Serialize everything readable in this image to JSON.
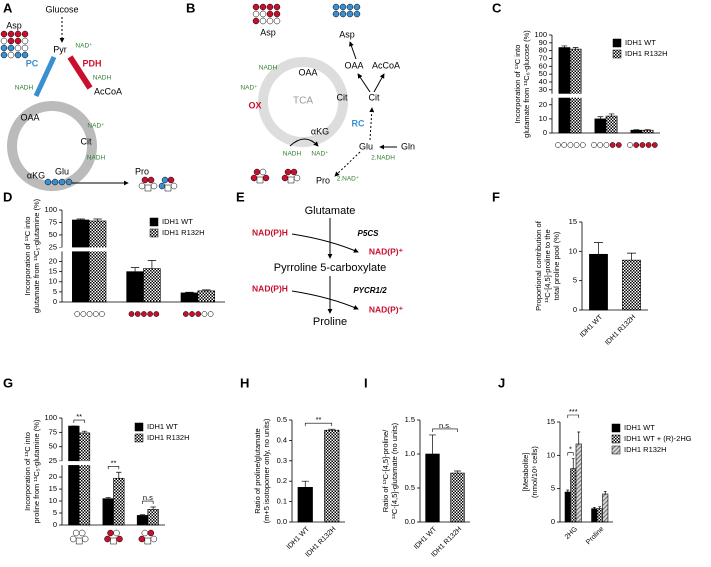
{
  "panel_a": {
    "letter": "A",
    "labels": [
      "Asp",
      "Glucose",
      "Pyr",
      "NAD⁺",
      "PC",
      "PDH",
      "NADH",
      "NADH",
      "OAA",
      "AcCoA",
      "Cit",
      "NAD⁺",
      "NADH",
      "αKG",
      "Glu",
      "Pro"
    ]
  },
  "panel_b": {
    "letter": "B",
    "labels": [
      "Asp",
      "NADH",
      "NAD⁺",
      "OX",
      "OAA",
      "TCA",
      "Cit",
      "αKG",
      "Asp",
      "OAA",
      "AcCoA",
      "Cit",
      "RC",
      "Glu",
      "Gln",
      "NADH",
      "NAD⁺",
      "Pro",
      "2.NADH",
      "2.NAD⁺"
    ]
  },
  "panel_e": {
    "letter": "E",
    "labels": [
      "Glutamate",
      "NAD(P)H",
      "P5CS",
      "NAD(P)⁺",
      "Pyrroline 5-carboxylate",
      "NAD(P)H",
      "PYCR1/2",
      "NAD(P)⁺",
      "Proline"
    ]
  },
  "chart_data": [
    {
      "type": "bar",
      "panel": "C",
      "ylabel": [
        "Incorporation of ¹³C into",
        "glutamate from ¹³C₆-glucose (%)"
      ],
      "categories": [
        null,
        null,
        null
      ],
      "series": [
        {
          "name": "IDH1 WT",
          "fill": "#000000",
          "values": [
            84,
            10,
            2
          ],
          "errors": [
            2,
            1.5,
            0.3
          ]
        },
        {
          "name": "IDH1 R132H",
          "fill": "checker",
          "values": [
            82,
            12,
            2
          ],
          "errors": [
            2,
            1.5,
            0.3
          ]
        }
      ],
      "ylim": [
        0,
        100
      ],
      "ybreak": 25,
      "yticks": [
        0,
        10,
        20,
        30,
        40,
        50,
        60,
        70,
        80,
        90,
        100
      ]
    },
    {
      "type": "bar",
      "panel": "D",
      "ylabel": [
        "Incorporation of ¹³C into",
        "glutamate from ¹³C₅-glutamine (%)"
      ],
      "categories": [
        null,
        null,
        null
      ],
      "series": [
        {
          "name": "IDH1 WT",
          "fill": "#000000",
          "values": [
            80,
            15,
            4.5
          ],
          "errors": [
            2,
            2,
            0.3
          ]
        },
        {
          "name": "IDH1 R132H",
          "fill": "checker",
          "values": [
            78,
            16.5,
            5.5
          ],
          "errors": [
            4,
            4,
            0.5
          ]
        }
      ],
      "ylim": [
        0,
        100
      ],
      "ybreak": 25,
      "yticks": [
        0,
        5,
        10,
        15,
        20,
        25,
        50,
        75,
        100
      ]
    },
    {
      "type": "bar",
      "panel": "F",
      "ylabel": [
        "Proportional contribution of",
        "¹³C-[4,5]-proline to the",
        "total proline pool (%)"
      ],
      "categories": [
        "IDH1 WT",
        "IDH1 R132H"
      ],
      "values": [
        9.5,
        8.5
      ],
      "errors": [
        2,
        1.2
      ],
      "fills": [
        "#000000",
        "checker"
      ],
      "ylim": [
        0,
        15
      ],
      "yticks": [
        0,
        5,
        10,
        15
      ]
    },
    {
      "type": "bar",
      "panel": "G",
      "ylabel": [
        "Incorporation of ¹³C into",
        "proline from ¹³C₅-glutamine (%)"
      ],
      "categories": [
        null,
        null,
        null
      ],
      "series": [
        {
          "name": "IDH1 WT",
          "fill": "#000000",
          "values": [
            86,
            11,
            4
          ],
          "errors": [
            0,
            0.5,
            0.3
          ]
        },
        {
          "name": "IDH1 R132H",
          "fill": "checker",
          "values": [
            74,
            19.5,
            6.5
          ],
          "errors": [
            3,
            2.5,
            1
          ]
        }
      ],
      "ylim": [
        0,
        100
      ],
      "ybreak": 25,
      "yticks": [
        0,
        5,
        10,
        15,
        20,
        25,
        50,
        75,
        100
      ],
      "annotations": [
        "**",
        "**",
        "n.s"
      ]
    },
    {
      "type": "bar",
      "panel": "H",
      "ylabel": [
        "Ratio of proline/glutamate",
        "(m+5 isotopomer only, no units)"
      ],
      "categories": [
        "IDH1 WT",
        "IDH1 R132H"
      ],
      "values": [
        0.17,
        0.45
      ],
      "errors": [
        0.03,
        0.005
      ],
      "fills": [
        "#000000",
        "checker"
      ],
      "ylim": [
        0,
        0.5
      ],
      "yticks": [
        {
          "value": 0,
          "label": "0.0"
        },
        0.1,
        0.2,
        0.3,
        0.4,
        0.5
      ],
      "annotations": [
        "**"
      ]
    },
    {
      "type": "bar",
      "panel": "I",
      "ylabel": [
        "Ratio of ¹³C-[4,5]-proline/",
        "¹³C-[4,5]-glutamate (no units)"
      ],
      "categories": [
        "IDH1 WT",
        "IDH1 R132H"
      ],
      "values": [
        1.0,
        0.72
      ],
      "errors": [
        0.28,
        0.03
      ],
      "fills": [
        "#000000",
        "checker"
      ],
      "ylim": [
        0,
        1.5
      ],
      "yticks": [
        {
          "value": 0,
          "label": "0.0"
        },
        0.5,
        {
          "value": 1,
          "label": "1.0"
        },
        1.5
      ],
      "annotations": [
        "n.s."
      ]
    },
    {
      "type": "bar",
      "panel": "J",
      "ylabel": [
        "[Metabolite]",
        "(nmol/10⁶ cells)"
      ],
      "categories": [
        "2HG",
        "Proline"
      ],
      "series": [
        {
          "name": "IDH1 WT",
          "fill": "#000000",
          "values": [
            4.5,
            2
          ],
          "errors": [
            0.3,
            0.2
          ]
        },
        {
          "name": "IDH1 WT + (R)-2HG",
          "fill": "checker",
          "values": [
            8,
            2
          ],
          "errors": [
            1.5,
            0.3
          ]
        },
        {
          "name": "IDH1 R132H",
          "fill": "hatch",
          "values": [
            11.7,
            4.2
          ],
          "errors": [
            1.8,
            0.4
          ]
        }
      ],
      "ylim": [
        0,
        15
      ],
      "yticks": [
        0,
        5,
        10,
        15
      ],
      "annotations": [
        "*",
        "***"
      ]
    }
  ]
}
